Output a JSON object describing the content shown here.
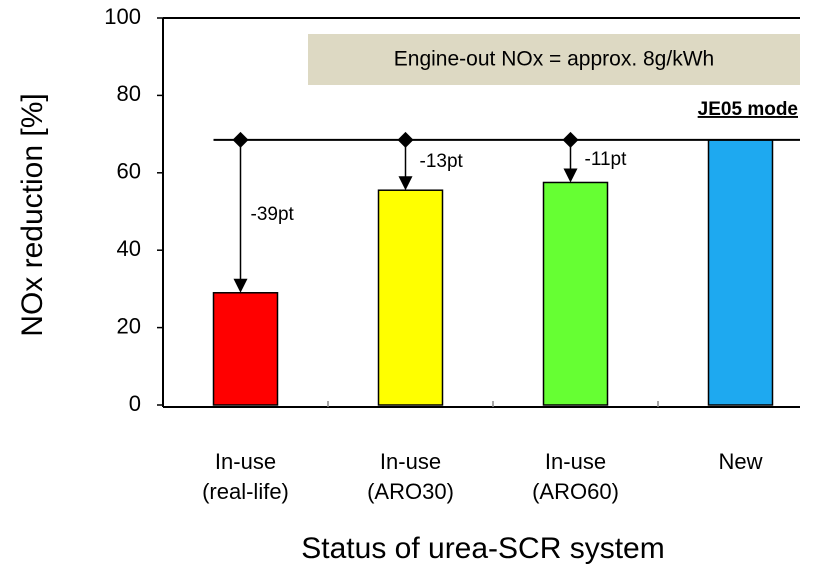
{
  "chart_data": {
    "type": "bar",
    "categories": [
      "In-use\n(real-life)",
      "In-use\n(ARO30)",
      "In-use\n(ARO60)",
      "New"
    ],
    "values": [
      29,
      55.5,
      57.5,
      68.5
    ],
    "colors": [
      "#ff0000",
      "#ffff00",
      "#66ff33",
      "#1ea9f0"
    ],
    "ylim": [
      0,
      100
    ],
    "yticks": [
      0,
      20,
      40,
      60,
      80,
      100
    ],
    "ylabel": "NOx reduction  [%]",
    "xlabel": "Status of urea-SCR system",
    "box_note": "Engine-out NOx = approx. 8g/kWh",
    "mode_note": "JE05 mode",
    "drop_labels": [
      "-39pt",
      "-13pt",
      "-11pt"
    ]
  }
}
